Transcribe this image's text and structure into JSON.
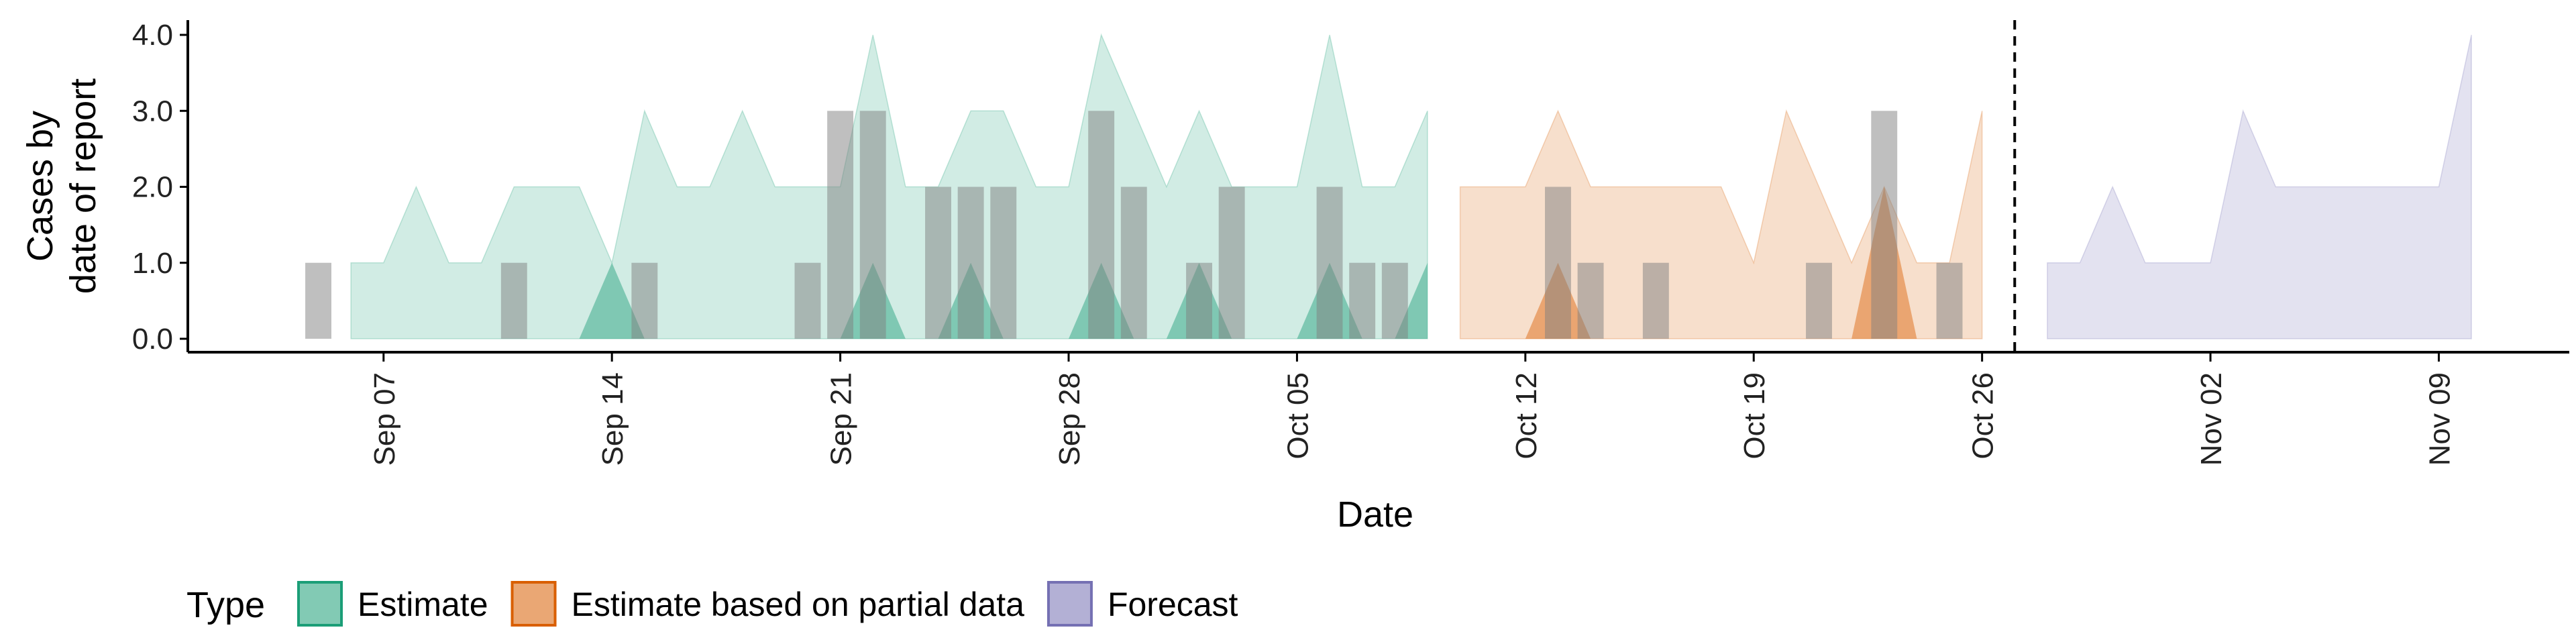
{
  "chart_data": {
    "type": "area",
    "xlabel": "Date",
    "ylabel": [
      "Cases by",
      "date of report"
    ],
    "ylim": [
      0,
      4
    ],
    "yticks": [
      "0.0",
      "1.0",
      "2.0",
      "3.0",
      "4.0"
    ],
    "x_range": [
      "2020-09-01",
      "2020-11-13"
    ],
    "xticks": [
      {
        "date": "2020-09-07",
        "label": "Sep 07"
      },
      {
        "date": "2020-09-14",
        "label": "Sep 14"
      },
      {
        "date": "2020-09-21",
        "label": "Sep 21"
      },
      {
        "date": "2020-09-28",
        "label": "Sep 28"
      },
      {
        "date": "2020-10-05",
        "label": "Oct 05"
      },
      {
        "date": "2020-10-12",
        "label": "Oct 12"
      },
      {
        "date": "2020-10-19",
        "label": "Oct 19"
      },
      {
        "date": "2020-10-26",
        "label": "Oct 26"
      },
      {
        "date": "2020-11-02",
        "label": "Nov 02"
      },
      {
        "date": "2020-11-09",
        "label": "Nov 09"
      }
    ],
    "forecast_line_date": "2020-10-27",
    "legend": {
      "title": "Type",
      "position": "bottom",
      "entries": [
        {
          "label": "Estimate",
          "fill": "#1b9e77",
          "stroke": "#1b9e77"
        },
        {
          "label": "Estimate based on partial data",
          "fill": "#d95f02",
          "stroke": "#d95f02"
        },
        {
          "label": "Forecast",
          "fill": "#7570b3",
          "stroke": "#7570b3"
        }
      ]
    },
    "series": [
      {
        "type_index": 0,
        "color": "#1b9e77",
        "start": "2020-09-06",
        "upper": [
          1,
          1,
          2,
          1,
          1,
          2,
          2,
          2,
          1,
          3,
          2,
          2,
          3,
          2,
          2,
          2,
          4,
          2,
          2,
          3,
          3,
          2,
          2,
          4,
          3,
          2,
          3,
          2,
          2,
          2,
          4,
          2,
          2,
          3
        ],
        "lower": [
          0,
          0,
          0,
          0,
          0,
          0,
          0,
          0,
          0,
          0,
          0,
          0,
          0,
          0,
          0,
          0,
          0,
          0,
          0,
          0,
          0,
          0,
          0,
          0,
          0,
          0,
          0,
          0,
          0,
          0,
          0,
          0,
          0,
          0
        ],
        "inner": [
          0,
          0,
          0,
          0,
          0,
          0,
          0,
          0,
          1,
          0,
          0,
          0,
          0,
          0,
          0,
          0,
          1,
          0,
          0,
          1,
          0,
          0,
          0,
          1,
          0,
          0,
          1,
          0,
          0,
          0,
          1,
          0,
          0,
          1
        ]
      },
      {
        "type_index": 1,
        "color": "#d95f02",
        "start": "2020-10-10",
        "upper": [
          2,
          2,
          2,
          3,
          2,
          2,
          2,
          2,
          2,
          1,
          3,
          2,
          1,
          2,
          1,
          1,
          3
        ],
        "lower": [
          0,
          0,
          0,
          0,
          0,
          0,
          0,
          0,
          0,
          0,
          0,
          0,
          0,
          0,
          0,
          0,
          0
        ],
        "inner": [
          0,
          0,
          0,
          1,
          0,
          0,
          0,
          0,
          0,
          0,
          0,
          0,
          0,
          2,
          0,
          0,
          0
        ]
      },
      {
        "type_index": 2,
        "color": "#7570b3",
        "start": "2020-10-28",
        "upper": [
          1,
          1,
          2,
          1,
          1,
          1,
          3,
          2,
          2,
          2,
          2,
          2,
          2,
          4
        ],
        "lower": [
          0,
          0,
          0,
          0,
          0,
          0,
          0,
          0,
          0,
          0,
          0,
          0,
          0,
          0
        ]
      }
    ],
    "observed_bars": [
      {
        "date": "2020-09-05",
        "value": 1
      },
      {
        "date": "2020-09-11",
        "value": 1
      },
      {
        "date": "2020-09-15",
        "value": 1
      },
      {
        "date": "2020-09-20",
        "value": 1
      },
      {
        "date": "2020-09-21",
        "value": 3
      },
      {
        "date": "2020-09-22",
        "value": 3
      },
      {
        "date": "2020-09-24",
        "value": 2
      },
      {
        "date": "2020-09-25",
        "value": 2
      },
      {
        "date": "2020-09-26",
        "value": 2
      },
      {
        "date": "2020-09-29",
        "value": 3
      },
      {
        "date": "2020-09-30",
        "value": 2
      },
      {
        "date": "2020-10-02",
        "value": 1
      },
      {
        "date": "2020-10-03",
        "value": 2
      },
      {
        "date": "2020-10-06",
        "value": 2
      },
      {
        "date": "2020-10-07",
        "value": 1
      },
      {
        "date": "2020-10-08",
        "value": 1
      },
      {
        "date": "2020-10-13",
        "value": 2
      },
      {
        "date": "2020-10-14",
        "value": 1
      },
      {
        "date": "2020-10-16",
        "value": 1
      },
      {
        "date": "2020-10-21",
        "value": 1
      },
      {
        "date": "2020-10-23",
        "value": 3
      },
      {
        "date": "2020-10-25",
        "value": 1
      }
    ]
  }
}
